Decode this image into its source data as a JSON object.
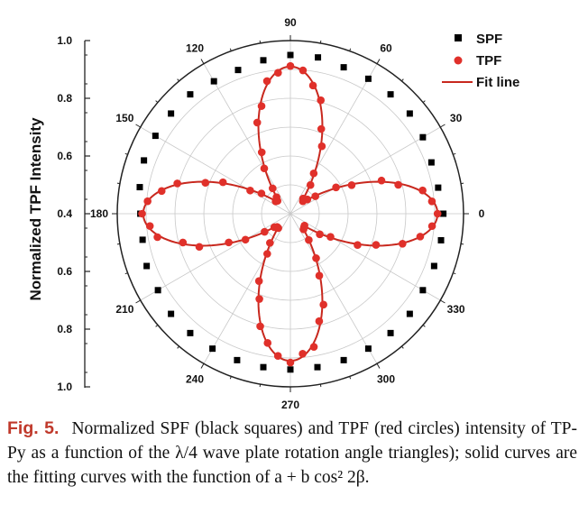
{
  "chart_data": {
    "type": "scatter",
    "coordinate_system": "polar",
    "ylabel": "Normalized TPF Intensity",
    "radial_tick_labels": [
      "1.0",
      "0.8",
      "0.6",
      "0.4",
      "0.6",
      "0.8",
      "1.0"
    ],
    "radial_range": [
      0.4,
      1.0
    ],
    "angle_tick_labels": [
      "0",
      "30",
      "60",
      "90",
      "120",
      "150",
      "180",
      "210",
      "240",
      "270",
      "300",
      "330"
    ],
    "angle_unit": "degree",
    "grid": true,
    "legend_position": "top-right",
    "legend": [
      "SPF",
      "TPF",
      "Fit line"
    ],
    "series": [
      {
        "name": "SPF",
        "marker": "square",
        "color": "#000000",
        "angle_step": 10,
        "angles": [
          0,
          10,
          20,
          30,
          40,
          50,
          60,
          70,
          80,
          90,
          100,
          110,
          120,
          130,
          140,
          150,
          160,
          170,
          180,
          190,
          200,
          210,
          220,
          230,
          240,
          250,
          260,
          270,
          280,
          290,
          300,
          310,
          320,
          330,
          340,
          350
        ],
        "values": [
          0.93,
          0.92,
          0.92,
          0.93,
          0.94,
          0.94,
          0.94,
          0.94,
          0.95,
          0.95,
          0.94,
          0.93,
          0.93,
          0.94,
          0.94,
          0.94,
          0.94,
          0.93,
          0.92,
          0.92,
          0.93,
          0.93,
          0.94,
          0.94,
          0.94,
          0.94,
          0.94,
          0.94,
          0.94,
          0.94,
          0.94,
          0.94,
          0.94,
          0.93,
          0.93,
          0.93
        ]
      },
      {
        "name": "TPF",
        "marker": "circle",
        "color": "#e0302a",
        "angle_step": 5,
        "fit_a": 0.46,
        "fit_b": 0.45
      },
      {
        "name": "Fit line",
        "type": "line",
        "color": "#c8281e",
        "function": "a + b*cos^2(2*beta)",
        "a": 0.46,
        "b": 0.45
      }
    ]
  },
  "caption": {
    "label": "Fig. 5.",
    "text": "Normalized SPF (black squares) and TPF (red circles) intensity of TP-Py as a function of the λ/4 wave plate rotation angle triangles); solid curves are the fitting curves with the function of a + b cos² 2β."
  }
}
